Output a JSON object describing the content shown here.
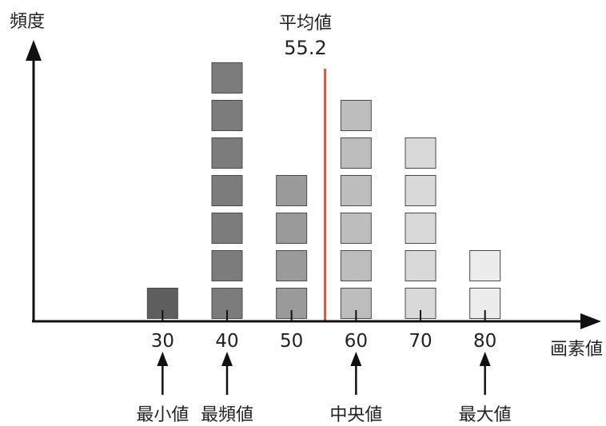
{
  "chart_data": {
    "type": "bar",
    "ylabel": "頻度",
    "xlabel": "画素値",
    "categories": [
      "30",
      "40",
      "50",
      "60",
      "70",
      "80"
    ],
    "x": [
      30,
      40,
      50,
      60,
      70,
      80
    ],
    "values": [
      1,
      7,
      4,
      6,
      5,
      2
    ],
    "bar_colors": [
      "#5e5e5e",
      "#7c7c7c",
      "#9a9a9a",
      "#bdbdbd",
      "#d9d9d9",
      "#ececec"
    ],
    "xlim": [
      10,
      85
    ],
    "ylim": [
      0,
      7
    ],
    "grid": false,
    "mean": {
      "label": "平均値",
      "value": "55.2",
      "x": 55.2,
      "color": "#e0533a"
    },
    "annotations": [
      {
        "label": "最小値",
        "x": 30
      },
      {
        "label": "最頻値",
        "x": 40
      },
      {
        "label": "中央値",
        "x": 60
      },
      {
        "label": "最大値",
        "x": 80
      }
    ]
  }
}
